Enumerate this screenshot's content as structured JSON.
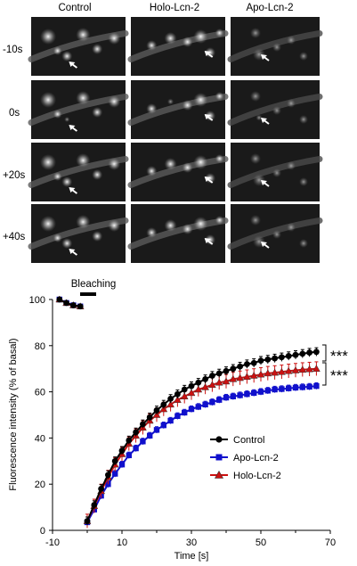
{
  "figure": {
    "panel_columns": [
      "Control",
      "Holo-Lcn-2",
      "Apo-Lcn-2"
    ],
    "panel_rows": [
      "-10s",
      "0s",
      "+20s",
      "+40s"
    ],
    "bleaching_label": "Bleaching",
    "significance": [
      "***",
      "***"
    ]
  },
  "chart_data": {
    "type": "line",
    "xlabel": "Time [s]",
    "ylabel": "Fluorescence intensity (% of basal)",
    "xlim": [
      -10,
      70
    ],
    "ylim": [
      0,
      100
    ],
    "x_ticks": [
      -10,
      10,
      30,
      50,
      70
    ],
    "y_ticks": [
      0,
      20,
      40,
      60,
      80,
      100
    ],
    "grid": false,
    "legend_position": "bottom-right",
    "x": [
      -8,
      -6,
      -4,
      -2,
      0,
      2,
      4,
      6,
      8,
      10,
      12,
      14,
      16,
      18,
      20,
      22,
      24,
      26,
      28,
      30,
      32,
      34,
      36,
      38,
      40,
      42,
      44,
      46,
      48,
      50,
      52,
      54,
      56,
      58,
      60,
      62,
      64,
      66
    ],
    "series": [
      {
        "name": "Control",
        "color": "#000000",
        "marker": "circle",
        "values": [
          100,
          98.5,
          97.5,
          97,
          4,
          11,
          18,
          24,
          30,
          34.5,
          39,
          42.5,
          46,
          49,
          52,
          54.5,
          57,
          59,
          61,
          62.5,
          64,
          65.5,
          67,
          68,
          69,
          70,
          71,
          72,
          72.5,
          73.5,
          74,
          74.5,
          75,
          75.5,
          76,
          76.5,
          77,
          77.3
        ],
        "error": 1.8
      },
      {
        "name": "Apo-Lcn-2",
        "color": "#1010cc",
        "marker": "square",
        "values": [
          100,
          98.5,
          97.5,
          97,
          3.5,
          9,
          15,
          20,
          24.5,
          28.5,
          32.5,
          35.5,
          38.5,
          41,
          43.5,
          45.5,
          47.5,
          49.5,
          51,
          52.5,
          53.5,
          54.5,
          55.5,
          56.5,
          57.5,
          58,
          58.5,
          59,
          59.5,
          60,
          60.5,
          61,
          61.2,
          61.5,
          61.8,
          62,
          62.2,
          62.5
        ],
        "error": 1.4
      },
      {
        "name": "Holo-Lcn-2",
        "color": "#cc1010",
        "marker": "triangle",
        "values": [
          100,
          98.5,
          97.5,
          97,
          4,
          10.5,
          17,
          23,
          28.5,
          33,
          37.5,
          41,
          44.5,
          47.5,
          50,
          52.5,
          54.5,
          56.5,
          58,
          59.5,
          61,
          62,
          63,
          64,
          64.5,
          65.5,
          66,
          66.5,
          67,
          67.5,
          68,
          68.3,
          68.6,
          69,
          69.3,
          69.6,
          69.8,
          70
        ],
        "error": 3.0
      }
    ]
  }
}
